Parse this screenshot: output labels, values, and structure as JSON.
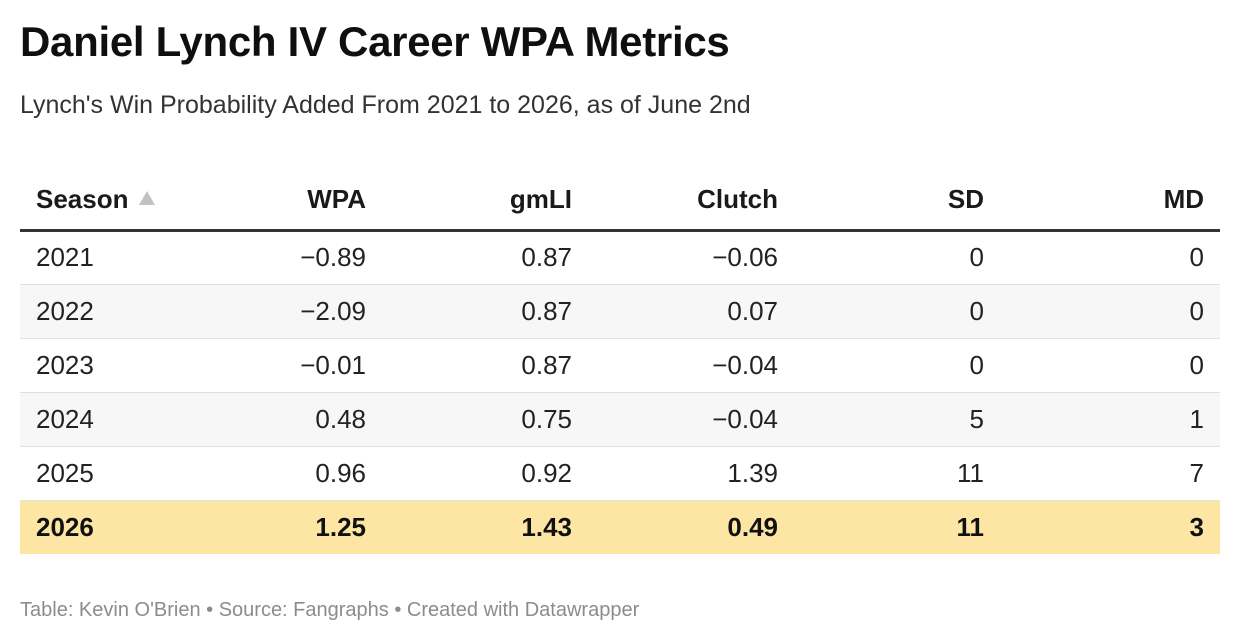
{
  "title": "Daniel Lynch IV Career WPA Metrics",
  "subtitle": "Lynch's Win Probability Added From 2021 to 2026, as of June 2nd",
  "footer": "Table: Kevin O'Brien • Source: Fangraphs • Created with Datawrapper",
  "colors": {
    "highlight_row": "#fde6a4",
    "alt_row": "#f7f7f7",
    "header_rule": "#333333",
    "footer_text": "#8c8c8c"
  },
  "chart_data": {
    "type": "table",
    "columns": [
      "Season",
      "WPA",
      "gmLI",
      "Clutch",
      "SD",
      "MD"
    ],
    "sorted_by": "Season",
    "sort_direction": "ascending",
    "highlighted_row": "2026",
    "rows": [
      [
        "2021",
        "−0.89",
        "0.87",
        "−0.06",
        "0",
        "0"
      ],
      [
        "2022",
        "−2.09",
        "0.87",
        "0.07",
        "0",
        "0"
      ],
      [
        "2023",
        "−0.01",
        "0.87",
        "−0.04",
        "0",
        "0"
      ],
      [
        "2024",
        "0.48",
        "0.75",
        "−0.04",
        "5",
        "1"
      ],
      [
        "2025",
        "0.96",
        "0.92",
        "1.39",
        "11",
        "7"
      ],
      [
        "2026",
        "1.25",
        "1.43",
        "0.49",
        "11",
        "3"
      ]
    ]
  }
}
